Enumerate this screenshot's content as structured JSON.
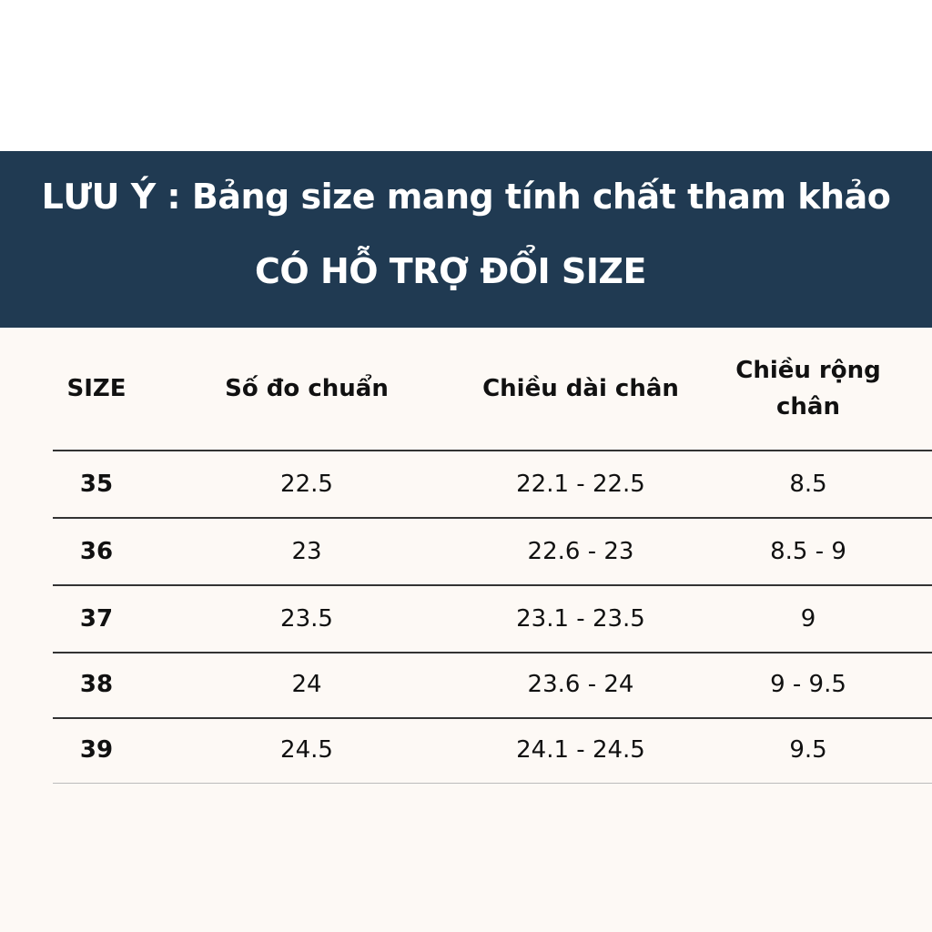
{
  "banner": {
    "line1": "LƯU Ý : Bảng size mang tính chất tham khảo",
    "line2": "CÓ HỖ TRỢ ĐỔI SIZE"
  },
  "table": {
    "headers": [
      "SIZE",
      "Số đo chuẩn",
      "Chiều dài chân",
      "Chiều rộng chân"
    ],
    "rows": [
      [
        "35",
        "22.5",
        "22.1 - 22.5",
        "8.5"
      ],
      [
        "36",
        "23",
        "22.6 - 23",
        "8.5 - 9"
      ],
      [
        "37",
        "23.5",
        "23.1 - 23.5",
        "9"
      ],
      [
        "38",
        "24",
        "23.6 - 24",
        "9 - 9.5"
      ],
      [
        "39",
        "24.5",
        "24.1 - 24.5",
        "9.5"
      ]
    ]
  },
  "colors": {
    "banner_bg": "#203a52",
    "banner_text": "#ffffff",
    "table_bg": "#fdf9f5",
    "rule": "#333333"
  }
}
